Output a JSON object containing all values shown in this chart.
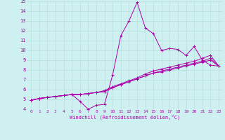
{
  "xlabel": "Windchill (Refroidissement éolien,°C)",
  "bg_color": "#cff0f0",
  "grid_color": "#b8dede",
  "line_color": "#aa00aa",
  "xlim": [
    -0.5,
    23.5
  ],
  "ylim": [
    4,
    15
  ],
  "xticks": [
    0,
    1,
    2,
    3,
    4,
    5,
    6,
    7,
    8,
    9,
    10,
    11,
    12,
    13,
    14,
    15,
    16,
    17,
    18,
    19,
    20,
    21,
    22,
    23
  ],
  "yticks": [
    4,
    5,
    6,
    7,
    8,
    9,
    10,
    11,
    12,
    13,
    14,
    15
  ],
  "series": [
    [
      4.9,
      5.1,
      5.2,
      5.3,
      5.4,
      5.5,
      4.8,
      4.0,
      4.4,
      4.5,
      7.5,
      11.5,
      13.0,
      14.9,
      12.3,
      11.7,
      10.0,
      10.2,
      10.1,
      9.5,
      10.4,
      9.0,
      8.5,
      8.4
    ],
    [
      4.9,
      5.1,
      5.2,
      5.3,
      5.4,
      5.5,
      5.5,
      5.6,
      5.7,
      5.8,
      6.2,
      6.5,
      6.8,
      7.1,
      7.4,
      7.7,
      7.8,
      8.0,
      8.2,
      8.4,
      8.6,
      8.8,
      9.0,
      8.4
    ],
    [
      4.9,
      5.1,
      5.2,
      5.3,
      5.4,
      5.5,
      5.5,
      5.6,
      5.7,
      5.8,
      6.2,
      6.5,
      6.8,
      7.1,
      7.4,
      7.7,
      7.9,
      8.1,
      8.3,
      8.5,
      8.7,
      8.9,
      9.2,
      8.4
    ],
    [
      4.9,
      5.1,
      5.2,
      5.3,
      5.4,
      5.5,
      5.5,
      5.6,
      5.7,
      5.9,
      6.3,
      6.6,
      6.9,
      7.2,
      7.6,
      7.9,
      8.1,
      8.3,
      8.5,
      8.7,
      8.9,
      9.2,
      9.5,
      8.4
    ]
  ]
}
